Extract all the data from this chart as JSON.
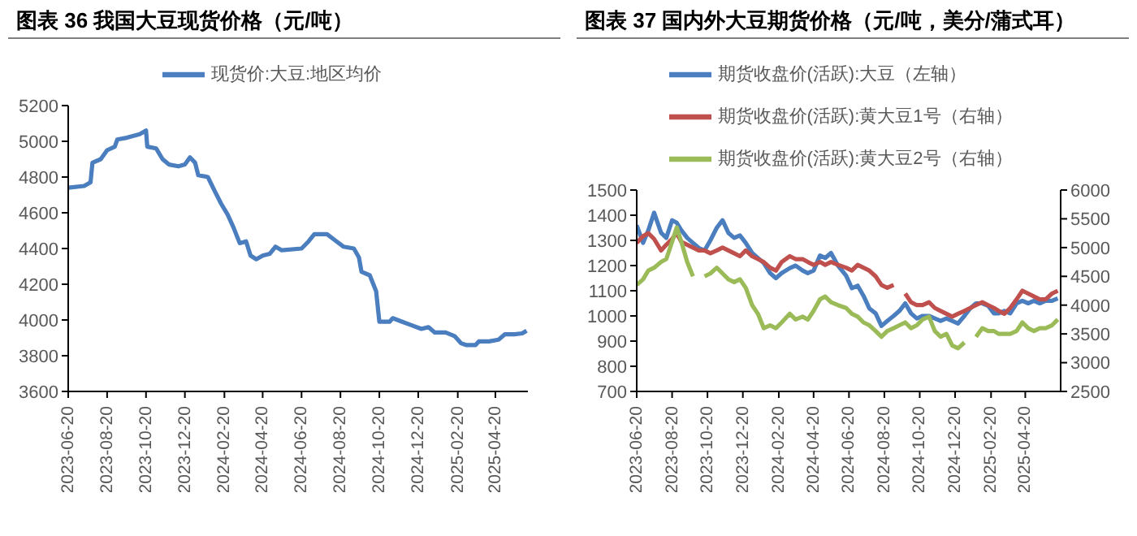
{
  "chart_data": [
    {
      "type": "line",
      "title": "图表 36 我国大豆现货价格（元/吨）",
      "legend": "top",
      "x": [
        "2023-06-20",
        "2023-07-15",
        "2023-07-25",
        "2023-07-28",
        "2023-08-10",
        "2023-08-20",
        "2023-09-01",
        "2023-09-05",
        "2023-09-20",
        "2023-10-10",
        "2023-10-20",
        "2023-10-22",
        "2023-11-05",
        "2023-11-15",
        "2023-11-25",
        "2023-12-10",
        "2023-12-20",
        "2023-12-28",
        "2024-01-05",
        "2024-01-10",
        "2024-01-25",
        "2024-02-05",
        "2024-02-15",
        "2024-02-25",
        "2024-03-05",
        "2024-03-15",
        "2024-03-25",
        "2024-04-01",
        "2024-04-10",
        "2024-04-20",
        "2024-05-01",
        "2024-05-10",
        "2024-05-20",
        "2024-06-20",
        "2024-07-01",
        "2024-07-10",
        "2024-07-30",
        "2024-08-10",
        "2024-08-25",
        "2024-09-10",
        "2024-09-18",
        "2024-09-22",
        "2024-10-05",
        "2024-10-15",
        "2024-10-20",
        "2024-10-25",
        "2024-11-05",
        "2024-11-10",
        "2024-11-25",
        "2024-12-10",
        "2024-12-25",
        "2025-01-05",
        "2025-01-15",
        "2025-02-01",
        "2025-02-15",
        "2025-02-25",
        "2025-03-05",
        "2025-03-20",
        "2025-03-25",
        "2025-04-10",
        "2025-04-25",
        "2025-05-05",
        "2025-05-20",
        "2025-06-01",
        "2025-06-08"
      ],
      "series": [
        {
          "name": "现货价:大豆:地区均价",
          "color": "#4a7ebf",
          "values": [
            4740,
            4750,
            4770,
            4880,
            4900,
            4950,
            4970,
            5010,
            5020,
            5040,
            5060,
            4970,
            4960,
            4900,
            4870,
            4860,
            4870,
            4910,
            4880,
            4810,
            4800,
            4720,
            4650,
            4590,
            4520,
            4430,
            4440,
            4360,
            4340,
            4360,
            4370,
            4410,
            4390,
            4400,
            4440,
            4480,
            4480,
            4450,
            4410,
            4400,
            4350,
            4270,
            4250,
            4160,
            3990,
            3990,
            3990,
            4010,
            3990,
            3970,
            3950,
            3960,
            3930,
            3930,
            3910,
            3870,
            3860,
            3860,
            3880,
            3880,
            3890,
            3920,
            3920,
            3925,
            3940
          ]
        }
      ],
      "xlim": [
        "2023-06-20",
        "2025-06-10"
      ],
      "xticks": [
        "2023-06-20",
        "2023-08-20",
        "2023-10-20",
        "2023-12-20",
        "2024-02-20",
        "2024-04-20",
        "2024-06-20",
        "2024-08-20",
        "2024-10-20",
        "2024-12-20",
        "2025-02-20",
        "2025-04-20"
      ],
      "ylim": [
        3600,
        5200
      ],
      "yticks": [
        3600,
        3800,
        4000,
        4200,
        4400,
        4600,
        4800,
        5000,
        5200
      ]
    },
    {
      "type": "line",
      "title": "图表 37 国内外大豆期货价格（元/吨，美分/蒲式耳）",
      "legend": "top",
      "x": [
        "2023-06-20",
        "2023-07-01",
        "2023-07-10",
        "2023-07-20",
        "2023-08-01",
        "2023-08-10",
        "2023-08-20",
        "2023-08-28",
        "2023-09-05",
        "2023-09-15",
        "2023-09-25",
        "2023-10-05",
        "2023-10-15",
        "2023-10-25",
        "2023-11-05",
        "2023-11-15",
        "2023-11-25",
        "2023-12-05",
        "2023-12-15",
        "2023-12-25",
        "2024-01-05",
        "2024-01-15",
        "2024-01-25",
        "2024-02-05",
        "2024-02-15",
        "2024-02-25",
        "2024-03-10",
        "2024-03-20",
        "2024-04-01",
        "2024-04-10",
        "2024-04-20",
        "2024-05-01",
        "2024-05-10",
        "2024-05-20",
        "2024-06-01",
        "2024-06-15",
        "2024-06-25",
        "2024-07-05",
        "2024-07-15",
        "2024-07-25",
        "2024-08-05",
        "2024-08-15",
        "2024-08-25",
        "2024-09-05",
        "2024-09-15",
        "2024-09-25",
        "2024-10-05",
        "2024-10-15",
        "2024-10-25",
        "2024-11-05",
        "2024-11-15",
        "2024-11-25",
        "2024-12-05",
        "2024-12-15",
        "2024-12-25",
        "2025-01-05",
        "2025-01-15",
        "2025-01-25",
        "2025-02-05",
        "2025-02-15",
        "2025-02-25",
        "2025-03-05",
        "2025-03-15",
        "2025-03-25",
        "2025-04-05",
        "2025-04-15",
        "2025-04-25",
        "2025-05-05",
        "2025-05-15",
        "2025-05-25",
        "2025-06-05",
        "2025-06-15"
      ],
      "series": [
        {
          "name": "期货收盘价(活跃):大豆（左轴）",
          "color": "#4a7ebf",
          "values": [
            1360,
            1290,
            1340,
            1410,
            1330,
            1310,
            1380,
            1370,
            1340,
            1310,
            1290,
            1270,
            1260,
            1300,
            1350,
            1380,
            1330,
            1310,
            1320,
            1290,
            1250,
            1230,
            1210,
            1170,
            1150,
            1170,
            1190,
            1200,
            1180,
            1170,
            1180,
            1240,
            1230,
            1250,
            1200,
            1160,
            1110,
            1120,
            1080,
            1030,
            1010,
            960,
            980,
            1000,
            1020,
            1050,
            1010,
            990,
            1000,
            1000,
            990,
            980,
            990,
            980,
            970,
            1000,
            1030,
            1050,
            1050,
            1040,
            1010,
            1010,
            1020,
            1010,
            1050,
            1060,
            1050,
            1060,
            1050,
            1060,
            1060,
            1070
          ]
        },
        {
          "name": "期货收盘价(活跃):黄大豆1号（右轴）",
          "color": "#c0504d",
          "axis": "y2",
          "values": [
            5080,
            5200,
            5250,
            5150,
            4950,
            5050,
            5150,
            5250,
            5100,
            5050,
            5000,
            4950,
            4950,
            4900,
            4950,
            5000,
            4950,
            4900,
            4850,
            4950,
            4850,
            4800,
            4750,
            4650,
            4600,
            4750,
            4850,
            4800,
            4800,
            4750,
            4700,
            4750,
            4700,
            4750,
            4700,
            4650,
            4600,
            4700,
            4650,
            4600,
            4500,
            4350,
            4300,
            4350,
            null,
            4200,
            4050,
            4000,
            4000,
            4050,
            3950,
            3900,
            3850,
            3800,
            3850,
            3900,
            3950,
            4000,
            4050,
            4000,
            3950,
            3900,
            3850,
            3950,
            4100,
            4250,
            4200,
            4150,
            4100,
            4100,
            4200,
            4250
          ]
        },
        {
          "name": "期货收盘价(活跃):黄大豆2号（右轴）",
          "color": "#9bbb59",
          "axis": "y2",
          "values": [
            4350,
            4450,
            4600,
            4650,
            4750,
            4800,
            5100,
            5350,
            5100,
            4750,
            4500,
            null,
            4500,
            4550,
            4650,
            4550,
            4450,
            4400,
            4450,
            4300,
            4000,
            3850,
            3600,
            3650,
            3600,
            3700,
            3850,
            3750,
            3800,
            3750,
            3900,
            4100,
            4150,
            4050,
            4000,
            3950,
            3850,
            3800,
            3700,
            3650,
            3550,
            3450,
            3550,
            3600,
            3650,
            3700,
            3600,
            3650,
            3750,
            3800,
            3550,
            3450,
            3500,
            3300,
            3250,
            3350,
            null,
            3450,
            3600,
            3550,
            3550,
            3500,
            3500,
            3500,
            3550,
            3700,
            3600,
            3550,
            3600,
            3600,
            3650,
            3750
          ]
        }
      ],
      "xlim": [
        "2023-06-20",
        "2025-06-20"
      ],
      "xticks": [
        "2023-06-20",
        "2023-08-20",
        "2023-10-20",
        "2023-12-20",
        "2024-02-20",
        "2024-04-20",
        "2024-06-20",
        "2024-08-20",
        "2024-10-20",
        "2024-12-20",
        "2025-02-20",
        "2025-04-20"
      ],
      "ylim": [
        700,
        1500
      ],
      "yticks": [
        700,
        800,
        900,
        1000,
        1100,
        1200,
        1300,
        1400,
        1500
      ],
      "y2lim": [
        2500,
        6000
      ],
      "y2ticks": [
        2500,
        3000,
        3500,
        4000,
        4500,
        5000,
        5500,
        6000
      ]
    }
  ]
}
